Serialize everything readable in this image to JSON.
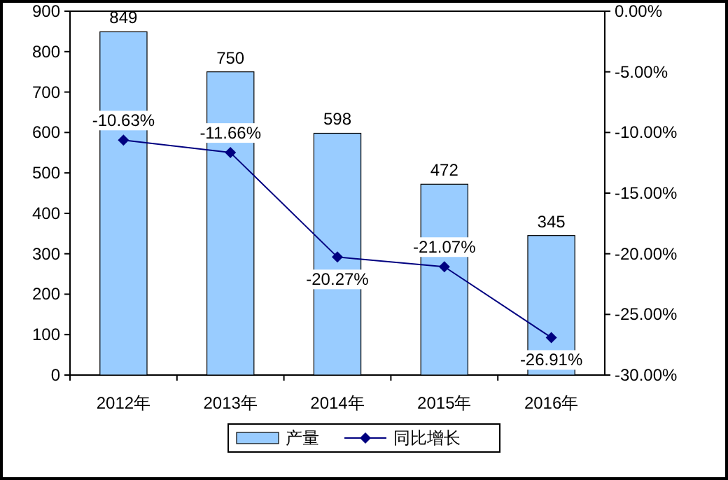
{
  "chart_data": {
    "type": "bar",
    "categories": [
      "2012年",
      "2013年",
      "2014年",
      "2015年",
      "2016年"
    ],
    "series": [
      {
        "name": "产量",
        "color": "#99ccff",
        "values": [
          849,
          750,
          598,
          472,
          345
        ],
        "value_labels": [
          "849",
          "750",
          "598",
          "472",
          "345"
        ]
      },
      {
        "name": "同比增长",
        "type": "line",
        "axis": "y2",
        "color": "#000080",
        "marker": "diamond",
        "values": [
          -10.63,
          -11.66,
          -20.27,
          -21.07,
          -26.91
        ],
        "value_labels": [
          "-10.63%",
          "-11.66%",
          "-20.27%",
          "-21.07%",
          "-26.91%"
        ]
      }
    ],
    "ylim": [
      0,
      900
    ],
    "yticks": [
      0,
      100,
      200,
      300,
      400,
      500,
      600,
      700,
      800,
      900
    ],
    "y2lim": [
      -30,
      0
    ],
    "y2ticks": [
      {
        "value": 0,
        "label": "0.00%"
      },
      {
        "value": -5,
        "label": "-5.00%"
      },
      {
        "value": -10,
        "label": "-10.00%"
      },
      {
        "value": -15,
        "label": "-15.00%"
      },
      {
        "value": -20,
        "label": "-20.00%"
      },
      {
        "value": -25,
        "label": "-25.00%"
      },
      {
        "value": -30,
        "label": "-30.00%"
      }
    ],
    "grid": false,
    "legend": "bottom"
  }
}
